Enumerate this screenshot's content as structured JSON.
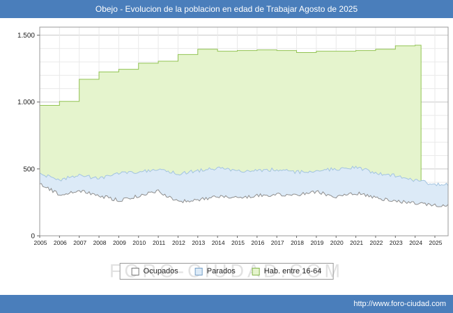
{
  "page": {
    "title": "Obejo - Evolucion de la poblacion en edad de Trabajar Agosto de 2025",
    "footer_url": "http://www.foro-ciudad.com",
    "watermark": "FORO-CIUDAD.COM",
    "frame_color": "#4a7ebb"
  },
  "legend": [
    {
      "label": "Ocupados",
      "fill": "#ffffff",
      "border": "#777777"
    },
    {
      "label": "Parados",
      "fill": "#dceaf7",
      "border": "#77a0c8"
    },
    {
      "label": "Hab. entre 16-64",
      "fill": "#e5f4cd",
      "border": "#85b64e"
    }
  ],
  "chart_data": {
    "type": "area",
    "title": "Obejo - Evolucion de la poblacion en edad de Trabajar Agosto de 2025",
    "x_years": [
      2005,
      2006,
      2007,
      2008,
      2009,
      2010,
      2011,
      2012,
      2013,
      2014,
      2015,
      2016,
      2017,
      2018,
      2019,
      2020,
      2021,
      2022,
      2023,
      2024,
      2025
    ],
    "x_end": 2025.67,
    "ylim": [
      0,
      1560
    ],
    "y_ticks": [
      {
        "value": 0,
        "label": "0"
      },
      {
        "value": 500,
        "label": "500"
      },
      {
        "value": 1000,
        "label": "1.000"
      },
      {
        "value": 1500,
        "label": "1.500"
      }
    ],
    "grid_minor_step": 100,
    "legend_position": "bottom",
    "series": [
      {
        "name": "Hab. entre 16-64",
        "type": "step-area",
        "fill": "#e5f4cd",
        "stroke": "#92c353",
        "end_x": 2024.3,
        "values_by_year": [
          975,
          1005,
          1170,
          1225,
          1245,
          1290,
          1305,
          1355,
          1395,
          1380,
          1385,
          1390,
          1385,
          1370,
          1380,
          1380,
          1385,
          1395,
          1420,
          1425,
          null
        ]
      },
      {
        "name": "Parados",
        "type": "area",
        "fill": "#dceaf7",
        "stroke": "#a3c4e0",
        "jitter": 13,
        "values_by_year": [
          465,
          420,
          450,
          430,
          465,
          475,
          495,
          465,
          485,
          505,
          480,
          490,
          495,
          475,
          485,
          500,
          515,
          470,
          450,
          415,
          385
        ]
      },
      {
        "name": "Ocupados",
        "type": "area",
        "fill": "#ffffff",
        "stroke": "#8e8e8e",
        "jitter": 13,
        "values_by_year": [
          390,
          310,
          335,
          300,
          265,
          300,
          335,
          255,
          270,
          295,
          285,
          300,
          310,
          305,
          330,
          290,
          320,
          285,
          260,
          245,
          230
        ]
      }
    ]
  }
}
